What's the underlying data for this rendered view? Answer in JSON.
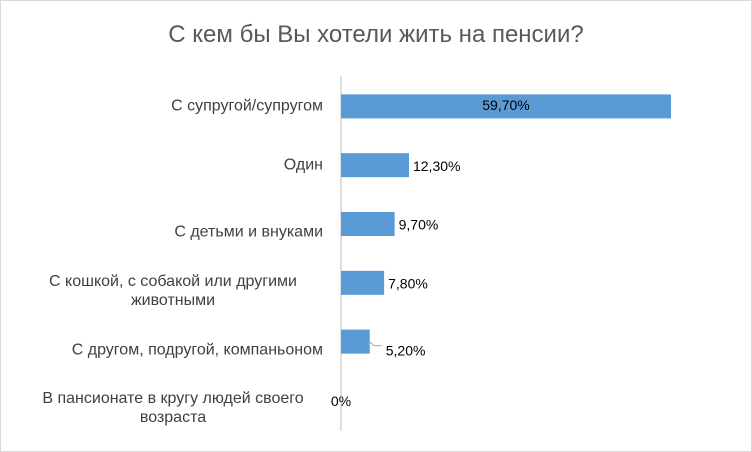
{
  "chart_data": {
    "type": "bar",
    "orientation": "horizontal",
    "title": "С кем бы Вы хотели жить на пенсии?",
    "categories": [
      "С супругой/супругом",
      "Один",
      "С детьми и внуками",
      "С кошкой, с собакой или другими животными",
      "С другом, подругой, компаньоном",
      "В пансионате в кругу людей своего возраста"
    ],
    "values": [
      59.7,
      12.3,
      9.7,
      7.8,
      5.2,
      0
    ],
    "value_labels": [
      "59,70%",
      "12,30%",
      "9,70%",
      "7,80%",
      "5,20%",
      "0%"
    ],
    "color": "#5b9bd5"
  }
}
